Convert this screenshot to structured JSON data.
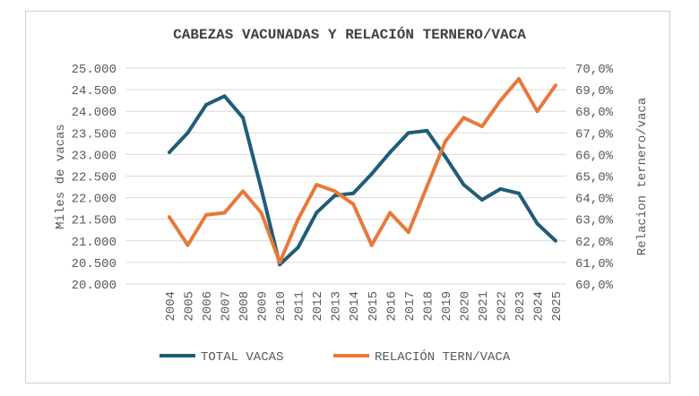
{
  "chart_data": {
    "type": "line",
    "title": "CABEZAS VACUNADAS Y RELACIÓN TERNERO/VACA",
    "ylabel": "Miles de vacas",
    "y2label": "Relacion ternero/vaca",
    "x": [
      "2004",
      "2005",
      "2006",
      "2007",
      "2008",
      "2009",
      "2010",
      "2011",
      "2012",
      "2013",
      "2014",
      "2015",
      "2016",
      "2017",
      "2018",
      "2019",
      "2020",
      "2021",
      "2022",
      "2023",
      "2024",
      "2025"
    ],
    "ylim": [
      20000,
      25000
    ],
    "y2lim": [
      60,
      70
    ],
    "yticks": [
      "20.000",
      "20.500",
      "21.000",
      "21.500",
      "22.000",
      "22.500",
      "23.000",
      "23.500",
      "24.000",
      "24.500",
      "25.000"
    ],
    "y2ticks": [
      "60,0%",
      "61,0%",
      "62,0%",
      "63,0%",
      "64,0%",
      "65,0%",
      "66,0%",
      "67,0%",
      "68,0%",
      "69,0%",
      "70,0%"
    ],
    "grid": true,
    "legend_position": "bottom",
    "series": [
      {
        "name": "TOTAL VACAS",
        "axis": "left",
        "color": "#1f5c7a",
        "values": [
          23050,
          23500,
          24150,
          24350,
          23850,
          22200,
          20450,
          20850,
          21650,
          22050,
          22100,
          22550,
          23050,
          23500,
          23550,
          22950,
          22300,
          21950,
          22200,
          22100,
          21400,
          21000
        ]
      },
      {
        "name": "RELACIÓN TERN/VACA",
        "axis": "right",
        "color": "#e8793a",
        "values": [
          63.1,
          61.8,
          63.2,
          63.3,
          64.3,
          63.3,
          61.0,
          63.0,
          64.6,
          64.3,
          63.7,
          61.8,
          63.3,
          62.4,
          64.5,
          66.6,
          67.7,
          67.3,
          68.5,
          69.5,
          68.0,
          69.2
        ]
      }
    ]
  }
}
